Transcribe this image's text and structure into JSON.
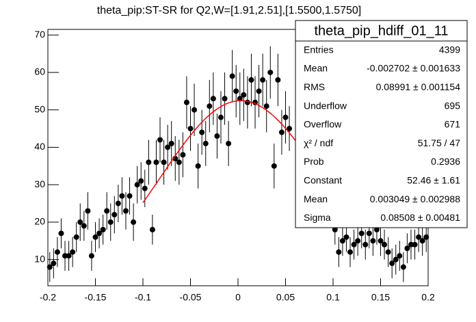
{
  "chart_data": {
    "type": "errorbar",
    "title": "theta_pip:ST-SR for Q2,W=[1.91,2.51],[1.5500,1.5750]",
    "x": [
      -0.198,
      -0.194,
      -0.19,
      -0.186,
      -0.182,
      -0.178,
      -0.174,
      -0.17,
      -0.166,
      -0.162,
      -0.158,
      -0.154,
      -0.15,
      -0.146,
      -0.142,
      -0.138,
      -0.134,
      -0.13,
      -0.126,
      -0.122,
      -0.118,
      -0.114,
      -0.11,
      -0.106,
      -0.102,
      -0.098,
      -0.094,
      -0.09,
      -0.086,
      -0.082,
      -0.078,
      -0.074,
      -0.07,
      -0.066,
      -0.062,
      -0.058,
      -0.054,
      -0.05,
      -0.046,
      -0.042,
      -0.038,
      -0.034,
      -0.03,
      -0.026,
      -0.022,
      -0.018,
      -0.014,
      -0.01,
      -0.006,
      -0.002,
      0.002,
      0.006,
      0.01,
      0.014,
      0.018,
      0.022,
      0.026,
      0.03,
      0.034,
      0.038,
      0.042,
      0.046,
      0.05,
      0.054,
      0.102,
      0.106,
      0.11,
      0.114,
      0.118,
      0.122,
      0.126,
      0.13,
      0.134,
      0.138,
      0.142,
      0.146,
      0.15,
      0.154,
      0.158,
      0.162,
      0.166,
      0.17,
      0.174,
      0.178,
      0.182,
      0.186,
      0.19,
      0.194,
      0.198
    ],
    "values": [
      8,
      9,
      12,
      17,
      11,
      11,
      12,
      16,
      20,
      19,
      23,
      11,
      16,
      17,
      18,
      23,
      20,
      22,
      25,
      27,
      23,
      27,
      20,
      30,
      31,
      29,
      36,
      18,
      36,
      42,
      36,
      40,
      41,
      37,
      36,
      38,
      52,
      45,
      50,
      35,
      44,
      41,
      51,
      53,
      43,
      48,
      53,
      41,
      59,
      55,
      53,
      54,
      52,
      58,
      52,
      55,
      58,
      51,
      60,
      35,
      58,
      44,
      48,
      45,
      18,
      12,
      15,
      16,
      12,
      14,
      15,
      17,
      14,
      17,
      15,
      18,
      15,
      14,
      12,
      9,
      10,
      11,
      8,
      13,
      14,
      14,
      16,
      15,
      16
    ],
    "errors": [
      4,
      4,
      4,
      4,
      4,
      4,
      4,
      4,
      5,
      4,
      5,
      4,
      4,
      4,
      4,
      5,
      5,
      5,
      5,
      5,
      5,
      5,
      5,
      5,
      5,
      5,
      6,
      4,
      6,
      6,
      6,
      6,
      6,
      6,
      6,
      6,
      7,
      6,
      7,
      6,
      6,
      6,
      7,
      7,
      6,
      7,
      7,
      6,
      7,
      7,
      7,
      7,
      7,
      7,
      7,
      7,
      7,
      7,
      7,
      6,
      7,
      6,
      7,
      6,
      4,
      4,
      4,
      4,
      4,
      4,
      4,
      4,
      4,
      4,
      4,
      4,
      4,
      4,
      4,
      4,
      4,
      4,
      4,
      4,
      4,
      4,
      4,
      4,
      4
    ],
    "color": "#000000",
    "fit": {
      "constant": 52.46,
      "mean": 0.003049,
      "sigma": 0.08508,
      "range": [
        -0.1,
        0.1
      ],
      "color": "#ff0000"
    },
    "xlim": [
      -0.2,
      0.2
    ],
    "ylim": [
      3,
      71.5
    ],
    "xticks": [
      -0.2,
      -0.15,
      -0.1,
      -0.05,
      0,
      0.05,
      0.1,
      0.15,
      0.2
    ],
    "yticks": [
      10,
      20,
      30,
      40,
      50,
      60,
      70
    ]
  },
  "stats_box": {
    "title": "theta_pip_hdiff_01_11",
    "rows": [
      [
        "Entries",
        "4399"
      ],
      [
        "Mean",
        "-0.002702 ± 0.001633"
      ],
      [
        "RMS",
        "0.08991 ± 0.001154"
      ],
      [
        "Underflow",
        "695"
      ],
      [
        "Overflow",
        "671"
      ],
      [
        "χ² / ndf",
        "51.75 / 47"
      ],
      [
        "Prob",
        "0.2936"
      ],
      [
        "Constant",
        "52.46 ± 1.61"
      ],
      [
        "Mean",
        "0.003049 ± 0.002988"
      ],
      [
        "Sigma",
        "0.08508 ± 0.00481"
      ]
    ]
  }
}
